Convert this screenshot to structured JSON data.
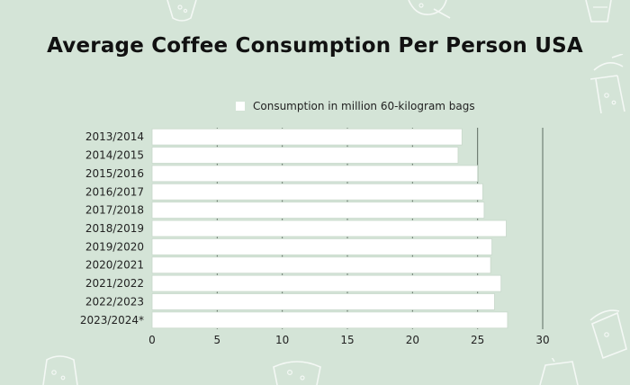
{
  "chart_data": {
    "type": "bar",
    "orientation": "horizontal",
    "title": "Average Coffee Consumption Per Person USA",
    "categories": [
      "2013/2014",
      "2014/2015",
      "2015/2016",
      "2016/2017",
      "2017/2018",
      "2018/2019",
      "2019/2020",
      "2020/2021",
      "2021/2022",
      "2022/2023",
      "2023/2024*"
    ],
    "series": [
      {
        "name": "Consumption in million 60-kilogram bags",
        "values": [
          23.8,
          23.5,
          25.0,
          25.4,
          25.5,
          27.2,
          26.1,
          26.0,
          26.8,
          26.3,
          27.3
        ],
        "color": "#ffffff"
      }
    ],
    "xlim": [
      0,
      30
    ],
    "xticks": [
      0,
      5,
      10,
      15,
      20,
      25,
      30
    ],
    "legend_position": "top",
    "grid": true
  },
  "colors": {
    "background": "#d4e4d7",
    "bar": "#ffffff",
    "bar_border": "#c8d8cb",
    "grid": "#5d6b60"
  }
}
